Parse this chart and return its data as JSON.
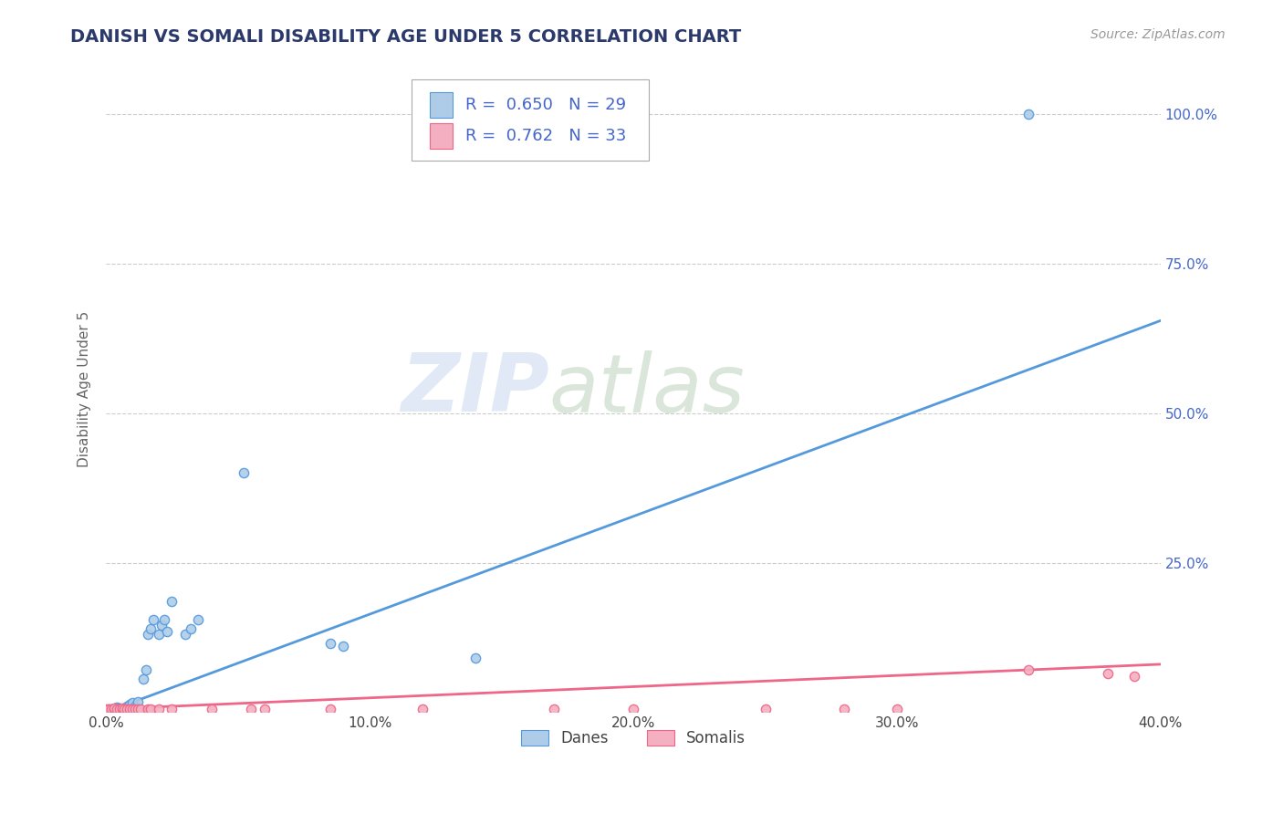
{
  "title": "DANISH VS SOMALI DISABILITY AGE UNDER 5 CORRELATION CHART",
  "source": "Source: ZipAtlas.com",
  "ylabel_label": "Disability Age Under 5",
  "xlim": [
    0.0,
    0.4
  ],
  "ylim": [
    0.0,
    1.08
  ],
  "xtick_labels": [
    "0.0%",
    "10.0%",
    "20.0%",
    "30.0%",
    "40.0%"
  ],
  "xtick_values": [
    0.0,
    0.1,
    0.2,
    0.3,
    0.4
  ],
  "ytick_values": [
    0.25,
    0.5,
    0.75,
    1.0
  ],
  "ytick_right_labels": [
    "25.0%",
    "50.0%",
    "75.0%",
    "100.0%"
  ],
  "danes_R": "0.650",
  "danes_N": "29",
  "somalis_R": "0.762",
  "somalis_N": "33",
  "danes_color": "#aecce8",
  "somalis_color": "#f4afc0",
  "danes_edge_color": "#5599dd",
  "somalis_edge_color": "#ee6688",
  "danes_line_color": "#5599dd",
  "somalis_line_color": "#ee6688",
  "legend_text_color": "#4466cc",
  "watermark_zip": "ZIP",
  "watermark_atlas": "atlas",
  "background_color": "#ffffff",
  "grid_color": "#cccccc",
  "danes_scatter_x": [
    0.001,
    0.002,
    0.003,
    0.004,
    0.005,
    0.006,
    0.008,
    0.009,
    0.01,
    0.011,
    0.012,
    0.014,
    0.015,
    0.016,
    0.017,
    0.018,
    0.02,
    0.021,
    0.022,
    0.023,
    0.025,
    0.03,
    0.032,
    0.035,
    0.052,
    0.085,
    0.09,
    0.14,
    0.35
  ],
  "danes_scatter_y": [
    0.005,
    0.005,
    0.005,
    0.008,
    0.006,
    0.005,
    0.01,
    0.012,
    0.015,
    0.01,
    0.018,
    0.055,
    0.07,
    0.13,
    0.14,
    0.155,
    0.13,
    0.145,
    0.155,
    0.135,
    0.185,
    0.13,
    0.14,
    0.155,
    0.4,
    0.115,
    0.11,
    0.09,
    1.0
  ],
  "somalis_scatter_x": [
    0.0,
    0.001,
    0.002,
    0.003,
    0.003,
    0.004,
    0.005,
    0.006,
    0.006,
    0.007,
    0.008,
    0.009,
    0.01,
    0.011,
    0.012,
    0.013,
    0.016,
    0.017,
    0.02,
    0.025,
    0.04,
    0.055,
    0.06,
    0.085,
    0.12,
    0.17,
    0.2,
    0.25,
    0.28,
    0.3,
    0.35,
    0.38,
    0.39
  ],
  "somalis_scatter_y": [
    0.005,
    0.005,
    0.005,
    0.005,
    0.007,
    0.005,
    0.005,
    0.005,
    0.007,
    0.005,
    0.005,
    0.005,
    0.005,
    0.005,
    0.005,
    0.005,
    0.005,
    0.005,
    0.005,
    0.005,
    0.005,
    0.005,
    0.005,
    0.005,
    0.005,
    0.005,
    0.005,
    0.005,
    0.005,
    0.005,
    0.07,
    0.065,
    0.06
  ],
  "danes_trendline_x": [
    0.0,
    0.4
  ],
  "danes_trendline_y": [
    0.0,
    0.655
  ],
  "somalis_trendline_x": [
    0.0,
    0.4
  ],
  "somalis_trendline_y": [
    0.005,
    0.08
  ]
}
